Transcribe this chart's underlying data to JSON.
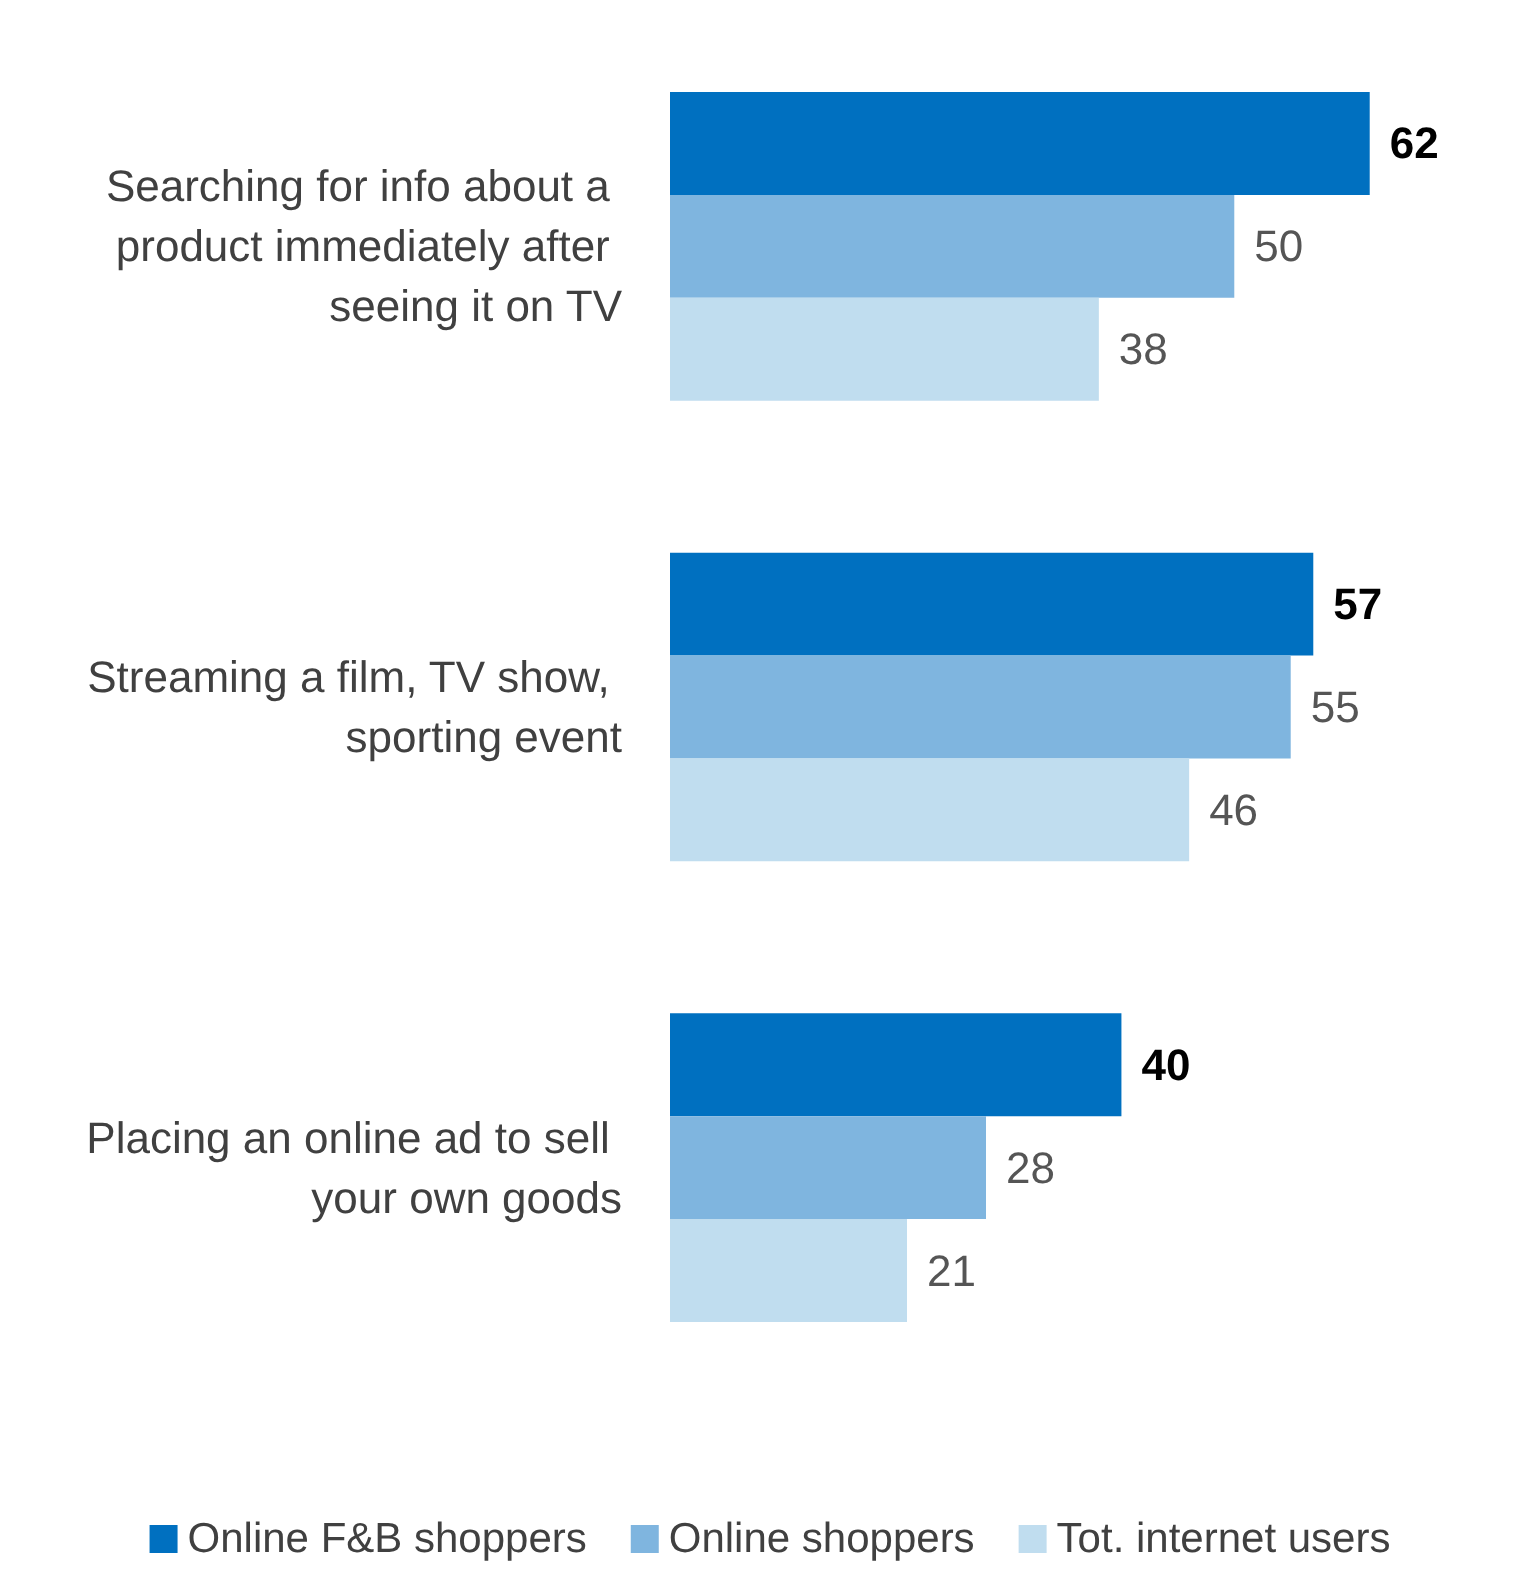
{
  "chart_data": {
    "type": "bar",
    "orientation": "horizontal",
    "categories": [
      "Searching for info about a product immediately after seeing it on TV",
      "Streaming a film, TV show, sporting event",
      "Placing an online ad to sell your own goods"
    ],
    "series": [
      {
        "name": "Online F&B shoppers",
        "color": "#0070c0",
        "values": [
          62,
          57,
          40
        ]
      },
      {
        "name": "Online shoppers",
        "color": "#7fb5df",
        "values": [
          50,
          55,
          28
        ]
      },
      {
        "name": "Tot. internet users",
        "color": "#c0ddef",
        "values": [
          38,
          46,
          21
        ]
      }
    ],
    "data_labels": true,
    "legend": "bottom",
    "grid": false
  }
}
